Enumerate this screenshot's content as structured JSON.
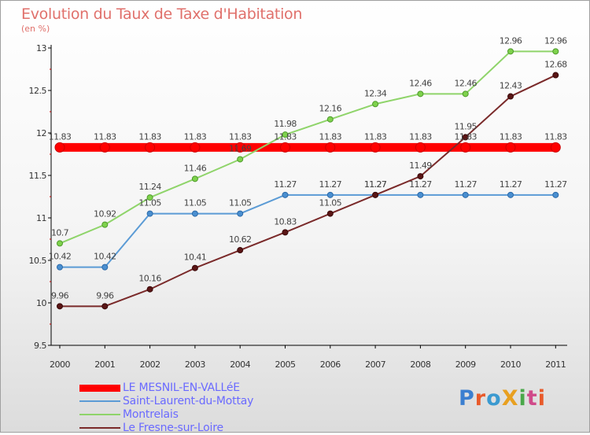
{
  "title": "Evolution du Taux de Taxe d'Habitation",
  "unit_label": "(en %)",
  "logo_text": "ProXiti",
  "chart_data": {
    "type": "line",
    "title": "Evolution du Taux de Taxe d'Habitation",
    "ylabel": "(en %)",
    "xlabel": "",
    "x": [
      "2000",
      "2001",
      "2002",
      "2003",
      "2004",
      "2005",
      "2006",
      "2007",
      "2008",
      "2009",
      "2010",
      "2011"
    ],
    "ylim": [
      9.5,
      13
    ],
    "yticks": [
      "9.5",
      "10",
      "10.5",
      "11",
      "11.5",
      "12",
      "12.5",
      "13"
    ],
    "grid": false,
    "legend_position": "bottom-left",
    "series": [
      {
        "name": "LE MESNIL-EN-VALLéE",
        "color": "#ff0000",
        "values": [
          11.83,
          11.83,
          11.83,
          11.83,
          11.83,
          11.83,
          11.83,
          11.83,
          11.83,
          11.83,
          11.83,
          11.83
        ],
        "labels": [
          "11.83",
          "11.83",
          "11.83",
          "11.83",
          "11.83",
          "11.83",
          "11.83",
          "11.83",
          "11.83",
          "11.83",
          "11.83",
          "11.83"
        ]
      },
      {
        "name": "Saint-Laurent-du-Mottay",
        "color": "#5b9bd5",
        "values": [
          10.42,
          10.42,
          11.05,
          11.05,
          11.05,
          11.27,
          11.27,
          11.27,
          11.27,
          11.27,
          11.27,
          11.27
        ],
        "labels": [
          "10.42",
          "10.42",
          "11.05",
          "11.05",
          "11.05",
          "11.27",
          "11.27",
          "11.27",
          "11.27",
          "11.27",
          "11.27",
          "11.27"
        ]
      },
      {
        "name": "Montrelais",
        "color": "#8fd46a",
        "values": [
          10.7,
          10.92,
          11.24,
          11.46,
          11.69,
          11.98,
          12.16,
          12.34,
          12.46,
          12.46,
          12.96,
          12.96
        ],
        "labels": [
          "10.7",
          "10.92",
          "11.24",
          "11.46",
          "11.69",
          "11.98",
          "12.16",
          "12.34",
          "12.46",
          "12.46",
          "12.96",
          "12.96"
        ]
      },
      {
        "name": "Le Fresne-sur-Loire",
        "color": "#7a2a2a",
        "values": [
          9.96,
          9.96,
          10.16,
          10.41,
          10.62,
          10.83,
          11.05,
          11.27,
          11.49,
          11.95,
          12.43,
          12.68
        ],
        "labels": [
          "9.96",
          "9.96",
          "10.16",
          "10.41",
          "10.62",
          "10.83",
          "11.05",
          "11.27",
          "11.49",
          "11.95",
          "12.43",
          "12.68"
        ]
      }
    ]
  }
}
